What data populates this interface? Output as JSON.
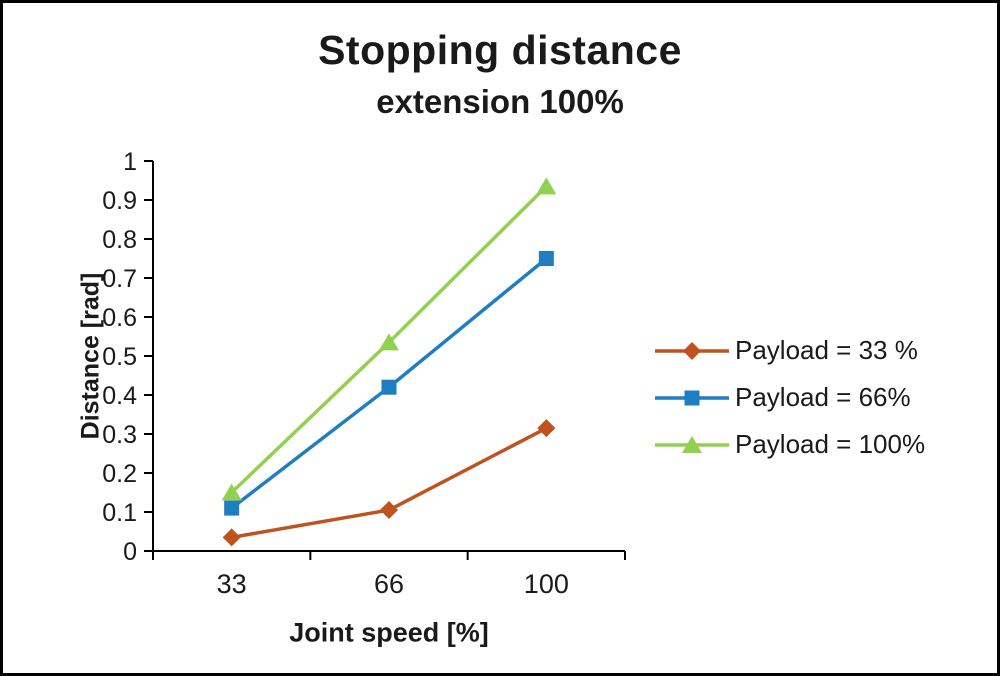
{
  "chart_data": {
    "type": "line",
    "title": "Stopping distance",
    "subtitle": "extension 100%",
    "xlabel": "Joint speed [%]",
    "ylabel": "Distance [rad]",
    "categories": [
      "33",
      "66",
      "100"
    ],
    "ylim": [
      0,
      1
    ],
    "ytick_values": [
      0,
      0.1,
      0.2,
      0.3,
      0.4,
      0.5,
      0.6,
      0.7,
      0.8,
      0.9,
      1
    ],
    "yticks": [
      "0",
      "0.1",
      "0.2",
      "0.3",
      "0.4",
      "0.5",
      "0.6",
      "0.7",
      "0.8",
      "0.9",
      "1"
    ],
    "grid": false,
    "legend_position": "right",
    "axis_color": "#000000",
    "text_color": "#1a1a1a",
    "series": [
      {
        "name": "Payload = 33 %",
        "marker": "diamond",
        "color": "#c0531d",
        "values": [
          0.035,
          0.105,
          0.315
        ]
      },
      {
        "name": "Payload =  66%",
        "marker": "square",
        "color": "#1f7ec2",
        "values": [
          0.11,
          0.42,
          0.75
        ]
      },
      {
        "name": "Payload =  100%",
        "marker": "triangle",
        "color": "#92d050",
        "values": [
          0.15,
          0.535,
          0.935
        ]
      }
    ]
  }
}
